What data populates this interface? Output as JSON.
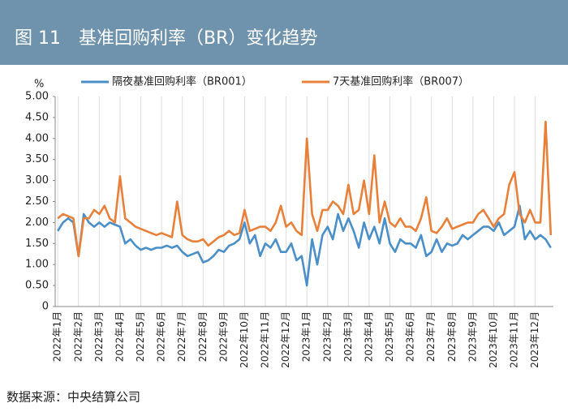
{
  "chart_data": {
    "type": "line",
    "title": "图 11　基准回购利率（BR）变化趋势",
    "y_label": "%",
    "source": "数据来源：中央结算公司",
    "categories": [
      "2022年1月",
      null,
      null,
      null,
      "2022年2月",
      null,
      null,
      null,
      "2022年3月",
      null,
      null,
      null,
      "2022年4月",
      null,
      null,
      null,
      "2022年5月",
      null,
      null,
      null,
      "2022年6月",
      null,
      null,
      null,
      "2022年7月",
      null,
      null,
      null,
      "2022年8月",
      null,
      null,
      null,
      "2022年9月",
      null,
      null,
      null,
      "2022年10月",
      null,
      null,
      null,
      "2022年11月",
      null,
      null,
      null,
      "2022年12月",
      null,
      null,
      null,
      "2023年1月",
      null,
      null,
      null,
      "2023年2月",
      null,
      null,
      null,
      "2023年3月",
      null,
      null,
      null,
      "2023年4月",
      null,
      null,
      null,
      "2023年5月",
      null,
      null,
      null,
      "2023年6月",
      null,
      null,
      null,
      "2023年7月",
      null,
      null,
      null,
      "2023年8月",
      null,
      null,
      null,
      "2023年9月",
      null,
      null,
      null,
      "2023年10月",
      null,
      null,
      null,
      "2023年11月",
      null,
      null,
      null,
      "2023年12月",
      null,
      null,
      null
    ],
    "series": [
      {
        "name": "隔夜基准回购利率（BR001）",
        "color": "#4a8fc7",
        "values": [
          1.8,
          2.0,
          2.1,
          2.0,
          1.2,
          2.2,
          2.0,
          1.9,
          2.0,
          1.9,
          2.0,
          1.95,
          1.9,
          1.5,
          1.6,
          1.45,
          1.35,
          1.4,
          1.35,
          1.4,
          1.4,
          1.45,
          1.4,
          1.45,
          1.3,
          1.2,
          1.25,
          1.3,
          1.05,
          1.1,
          1.2,
          1.35,
          1.3,
          1.45,
          1.5,
          1.6,
          2.0,
          1.5,
          1.7,
          1.2,
          1.5,
          1.4,
          1.6,
          1.3,
          1.3,
          1.5,
          1.1,
          1.2,
          0.5,
          1.6,
          1.0,
          1.7,
          1.9,
          1.6,
          2.2,
          1.8,
          2.1,
          1.8,
          1.4,
          2.0,
          1.6,
          1.9,
          1.5,
          2.1,
          1.5,
          1.3,
          1.6,
          1.5,
          1.5,
          1.4,
          1.7,
          1.2,
          1.3,
          1.6,
          1.3,
          1.5,
          1.45,
          1.5,
          1.7,
          1.6,
          1.7,
          1.8,
          1.9,
          1.9,
          1.8,
          2.0,
          1.7,
          1.8,
          1.9,
          2.4,
          1.6,
          1.8,
          1.6,
          1.7,
          1.6,
          1.4
        ]
      },
      {
        "name": "7天基准回购利率（BR007）",
        "color": "#e8803a",
        "values": [
          2.1,
          2.2,
          2.15,
          2.1,
          1.2,
          2.1,
          2.1,
          2.3,
          2.2,
          2.4,
          2.1,
          2.0,
          3.1,
          2.1,
          2.0,
          1.9,
          1.85,
          1.8,
          1.75,
          1.7,
          1.75,
          1.7,
          1.65,
          2.5,
          1.7,
          1.6,
          1.55,
          1.55,
          1.6,
          1.45,
          1.55,
          1.65,
          1.7,
          1.8,
          1.7,
          1.75,
          2.3,
          1.8,
          1.85,
          1.9,
          1.9,
          1.8,
          2.0,
          2.4,
          1.9,
          2.0,
          1.8,
          1.7,
          4.0,
          2.2,
          1.8,
          2.3,
          2.3,
          2.5,
          2.4,
          2.2,
          2.9,
          2.2,
          2.3,
          3.0,
          2.2,
          3.6,
          2.0,
          2.5,
          2.0,
          1.9,
          2.1,
          1.9,
          1.9,
          1.8,
          2.1,
          2.6,
          1.8,
          1.75,
          1.9,
          2.1,
          1.85,
          1.9,
          1.95,
          2.0,
          2.0,
          2.2,
          2.3,
          2.1,
          1.9,
          2.1,
          2.2,
          2.9,
          3.2,
          2.2,
          2.0,
          2.3,
          2.0,
          2.0,
          4.4,
          1.7
        ]
      }
    ],
    "ylim": [
      0,
      5
    ],
    "yticks": [
      0,
      {
        "value": 0.5,
        "label": "0.50"
      },
      {
        "value": 1,
        "label": "1.00"
      },
      {
        "value": 1.5,
        "label": "1.50"
      },
      {
        "value": 2,
        "label": "2.00"
      },
      {
        "value": 2.5,
        "label": "2.50"
      },
      {
        "value": 3,
        "label": "3.00"
      },
      {
        "value": 3.5,
        "label": "3.50"
      },
      {
        "value": 4,
        "label": "4.00"
      },
      {
        "value": 4.5,
        "label": "4.50"
      },
      {
        "value": 5,
        "label": "5.00"
      }
    ],
    "grid": "x"
  }
}
